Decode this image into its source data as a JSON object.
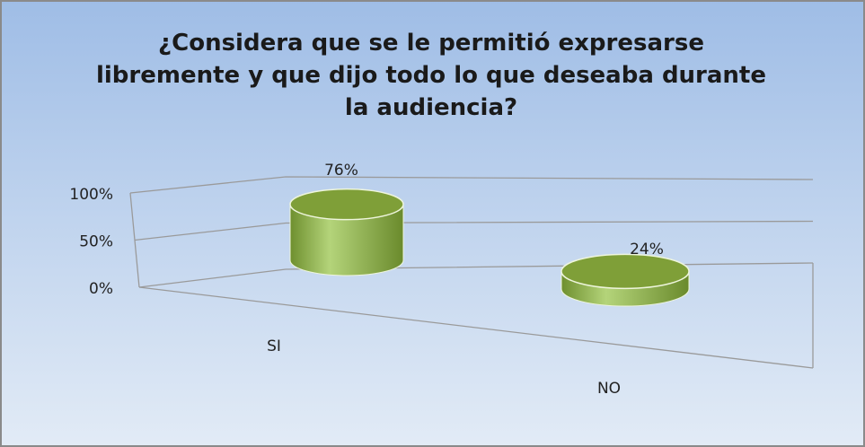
{
  "chart_data": {
    "type": "bar3d",
    "title": "¿Considera que se le permitió expresarse libremente y que dijo todo lo que deseaba durante la audiencia?",
    "categories": [
      "SI",
      "NO"
    ],
    "values": [
      76,
      24
    ],
    "value_labels": [
      "76%",
      "24%"
    ],
    "color": "#8fb24c",
    "ylim": [
      0,
      100
    ],
    "yticks": [
      {
        "value": 0,
        "label": "0%"
      },
      {
        "value": 50,
        "label": "50%"
      },
      {
        "value": 100,
        "label": "100%"
      }
    ],
    "grid": true
  }
}
